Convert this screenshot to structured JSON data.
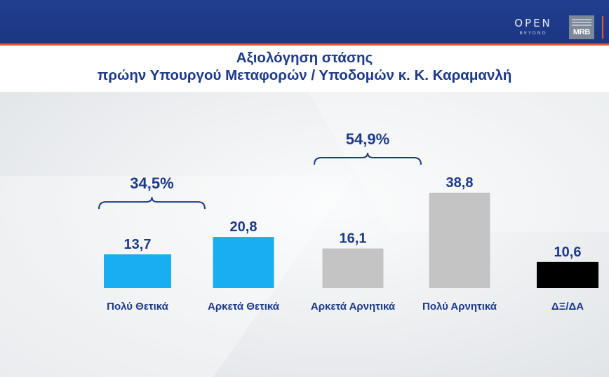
{
  "brand": {
    "open_logo": "OPEN",
    "open_sub": "BEYOND",
    "mrb_logo": "MRB",
    "bar_color": "#1b3682",
    "stripe_color": "#e9582a"
  },
  "colors": {
    "positive": "#19aef0",
    "negative": "#c4c4c4",
    "unknown": "#000000",
    "text": "#1d3a8a"
  },
  "chart_data": {
    "type": "bar",
    "title": "Αξιολόγηση στάσης",
    "subtitle": "πρώην Υπουργού Μεταφορών / Υποδομών κ. Κ. Καραμανλή",
    "categories": [
      "Πολύ Θετικά",
      "Αρκετά Θετικά",
      "Αρκετά Αρνητικά",
      "Πολύ Αρνητικά",
      "ΔΞ/ΔΑ"
    ],
    "values": [
      13.7,
      20.8,
      16.1,
      38.8,
      10.6
    ],
    "value_labels": [
      "13,7",
      "20,8",
      "16,1",
      "38,8",
      "10,6"
    ],
    "bar_colors": [
      "#19aef0",
      "#19aef0",
      "#c4c4c4",
      "#c4c4c4",
      "#000000"
    ],
    "groups": [
      {
        "label": "34,5%",
        "value": 34.5,
        "from": 0,
        "to": 1
      },
      {
        "label": "54,9%",
        "value": 54.9,
        "from": 2,
        "to": 3
      }
    ],
    "ylim": [
      0,
      38.8
    ],
    "xlabel": "",
    "ylabel": "",
    "grid": false,
    "legend": "none"
  }
}
